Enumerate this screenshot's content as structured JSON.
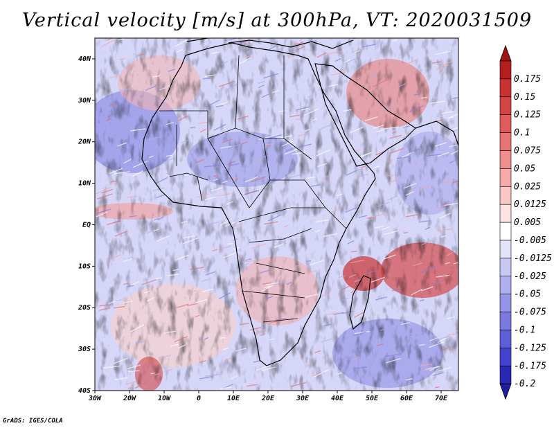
{
  "title": "Vertical velocity [m/s] at 300hPa, VT: 2020031509",
  "credit": "GrADS: IGES/COLA",
  "map": {
    "lon_range": [
      -30,
      75
    ],
    "lat_range": [
      -40,
      45
    ],
    "lat_ticks": [
      {
        "value": 40,
        "label": "40N"
      },
      {
        "value": 30,
        "label": "30N"
      },
      {
        "value": 20,
        "label": "20N"
      },
      {
        "value": 10,
        "label": "10N"
      },
      {
        "value": 0,
        "label": "EQ"
      },
      {
        "value": -10,
        "label": "10S"
      },
      {
        "value": -20,
        "label": "20S"
      },
      {
        "value": -30,
        "label": "30S"
      },
      {
        "value": -40,
        "label": "40S"
      }
    ],
    "lon_ticks": [
      {
        "value": -30,
        "label": "30W"
      },
      {
        "value": -20,
        "label": "20W"
      },
      {
        "value": -10,
        "label": "10W"
      },
      {
        "value": 0,
        "label": "0"
      },
      {
        "value": 10,
        "label": "10E"
      },
      {
        "value": 20,
        "label": "20E"
      },
      {
        "value": 30,
        "label": "30E"
      },
      {
        "value": 40,
        "label": "40E"
      },
      {
        "value": 50,
        "label": "50E"
      },
      {
        "value": 60,
        "label": "60E"
      },
      {
        "value": 70,
        "label": "70E"
      }
    ]
  },
  "colorbar": {
    "levels": [
      {
        "label": "0.175",
        "color": "#b41e1e"
      },
      {
        "label": "0.15",
        "color": "#c83232"
      },
      {
        "label": "0.125",
        "color": "#d44646"
      },
      {
        "label": "0.1",
        "color": "#e05c5c"
      },
      {
        "label": "0.075",
        "color": "#e87474"
      },
      {
        "label": "0.05",
        "color": "#f08e8e"
      },
      {
        "label": "0.025",
        "color": "#f6aaaa"
      },
      {
        "label": "0.0125",
        "color": "#fac6c6"
      },
      {
        "label": "0.005",
        "color": "#fde2e2"
      },
      {
        "label": "-0.005",
        "color": "#ffffff"
      },
      {
        "label": "-0.0125",
        "color": "#e2e2fa"
      },
      {
        "label": "-0.025",
        "color": "#c8c8f4"
      },
      {
        "label": "-0.05",
        "color": "#aeaef0"
      },
      {
        "label": "-0.075",
        "color": "#9494ea"
      },
      {
        "label": "-0.1",
        "color": "#7a7ae2"
      },
      {
        "label": "-0.125",
        "color": "#5e5ed8"
      },
      {
        "label": "-0.175",
        "color": "#4242cc"
      },
      {
        "label": "-0.2",
        "color": "#2828b4"
      }
    ],
    "top_arrow_color": "#a01414",
    "bottom_arrow_color": "#1e1e9e"
  }
}
